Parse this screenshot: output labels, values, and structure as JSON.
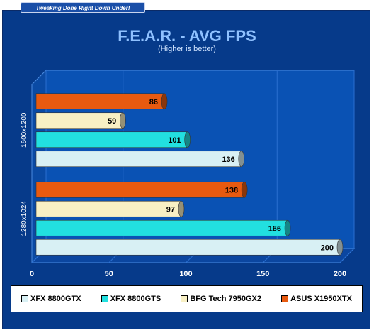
{
  "watermark": "Tweaking Done Right Down Under!",
  "chart_data": {
    "type": "bar",
    "orientation": "horizontal",
    "title": "F.E.A.R. - AVG FPS",
    "subtitle": "(Higher is better)",
    "categories": [
      "1600x1200",
      "1280x1024"
    ],
    "series": [
      {
        "name": "XFX 8800GTX",
        "color": "#d8f0f4",
        "values": [
          136,
          200
        ]
      },
      {
        "name": "XFX 8800GTS",
        "color": "#22e0e0",
        "values": [
          101,
          166
        ]
      },
      {
        "name": "BFG Tech 7950GX2",
        "color": "#f8f0c4",
        "values": [
          59,
          97
        ]
      },
      {
        "name": "ASUS X1950XTX",
        "color": "#e85a10",
        "values": [
          86,
          138
        ]
      }
    ],
    "xlim": [
      0,
      200
    ],
    "xticks": [
      0,
      50,
      100,
      150,
      200
    ],
    "grid": true,
    "legend_position": "bottom"
  }
}
